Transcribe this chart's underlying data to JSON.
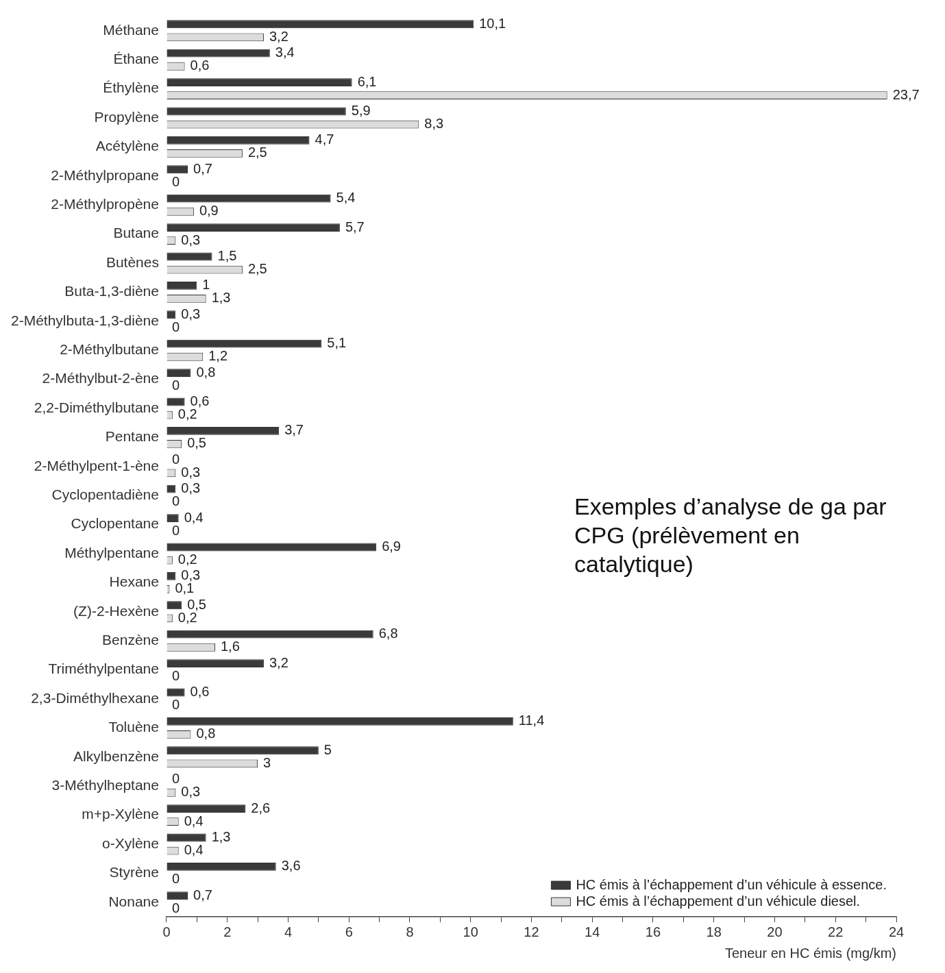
{
  "chart_data": {
    "type": "bar",
    "orientation": "horizontal",
    "xlabel": "Teneur en HC émis (mg/km)",
    "categories": [
      "Méthane",
      "Éthane",
      "Éthylène",
      "Propylène",
      "Acétylène",
      "2-Méthylpropane",
      "2-Méthylpropène",
      "Butane",
      "Butènes",
      "Buta-1,3-diène",
      "2-Méthylbuta-1,3-diène",
      "2-Méthylbutane",
      "2-Méthylbut-2-ène",
      "2,2-Diméthylbutane",
      "Pentane",
      "2-Méthylpent-1-ène",
      "Cyclopentadiène",
      "Cyclopentane",
      "Méthylpentane",
      "Hexane",
      "(Z)-2-Hexène",
      "Benzène",
      "Triméthylpentane",
      "2,3-Diméthylhexane",
      "Toluène",
      "Alkylbenzène",
      "3-Méthylheptane",
      "m+p-Xylène",
      "o-Xylène",
      "Styrène",
      "Nonane"
    ],
    "series": [
      {
        "name": "HC émis à l’échappement d’un véhicule à essence.",
        "color": "#3a3a3a",
        "values": [
          10.1,
          3.4,
          6.1,
          5.9,
          4.7,
          0.7,
          5.4,
          5.7,
          1.5,
          1,
          0.3,
          5.1,
          0.8,
          0.6,
          3.7,
          0,
          0.3,
          0.4,
          6.9,
          0.3,
          0.5,
          6.8,
          3.2,
          0.6,
          11.4,
          5,
          0,
          2.6,
          1.3,
          3.6,
          0.7
        ],
        "value_labels": [
          "10,1",
          "3,4",
          "6,1",
          "5,9",
          "4,7",
          "0,7",
          "5,4",
          "5,7",
          "1,5",
          "1",
          "0,3",
          "5,1",
          "0,8",
          "0,6",
          "3,7",
          "0",
          "0,3",
          "0,4",
          "6,9",
          "0,3",
          "0,5",
          "6,8",
          "3,2",
          "0,6",
          "11,4",
          "5",
          "0",
          "2,6",
          "1,3",
          "3,6",
          "0,7"
        ]
      },
      {
        "name": "HC émis à l’échappement d’un véhicule diesel.",
        "color": "#dcdcdc",
        "values": [
          3.2,
          0.6,
          23.7,
          8.3,
          2.5,
          0,
          0.9,
          0.3,
          2.5,
          1.3,
          0,
          1.2,
          0,
          0.2,
          0.5,
          0.3,
          0,
          0,
          0.2,
          0.1,
          0.2,
          1.6,
          0,
          0,
          0.8,
          3,
          0.3,
          0.4,
          0.4,
          0,
          0
        ],
        "value_labels": [
          "3,2",
          "0,6",
          "23,7",
          "8,3",
          "2,5",
          "0",
          "0,9",
          "0,3",
          "2,5",
          "1,3",
          "0",
          "1,2",
          "0",
          "0,2",
          "0,5",
          "0,3",
          "0",
          "0",
          "0,2",
          "0,1",
          "0,2",
          "1,6",
          "0",
          "0",
          "0,8",
          "3",
          "0,3",
          "0,4",
          "0,4",
          "0",
          "0"
        ]
      }
    ],
    "xlim": [
      0,
      24
    ],
    "xticks": [
      0,
      {
        "value": 1,
        "label": null
      },
      2,
      {
        "value": 3,
        "label": null
      },
      4,
      {
        "value": 5,
        "label": null
      },
      6,
      {
        "value": 7,
        "label": null
      },
      8,
      {
        "value": 9,
        "label": null
      },
      10,
      {
        "value": 11,
        "label": null
      },
      12,
      {
        "value": 13,
        "label": null
      },
      14,
      {
        "value": 15,
        "label": null
      },
      16,
      {
        "value": 17,
        "label": null
      },
      18,
      {
        "value": 19,
        "label": null
      },
      20,
      {
        "value": 21,
        "label": null
      },
      22,
      {
        "value": 23,
        "label": null
      },
      24
    ],
    "grid": false,
    "legend": "bottom right",
    "annotations": [
      "Exemples d’analyse de ga par CPG (prélèvement en catalytique)"
    ]
  }
}
